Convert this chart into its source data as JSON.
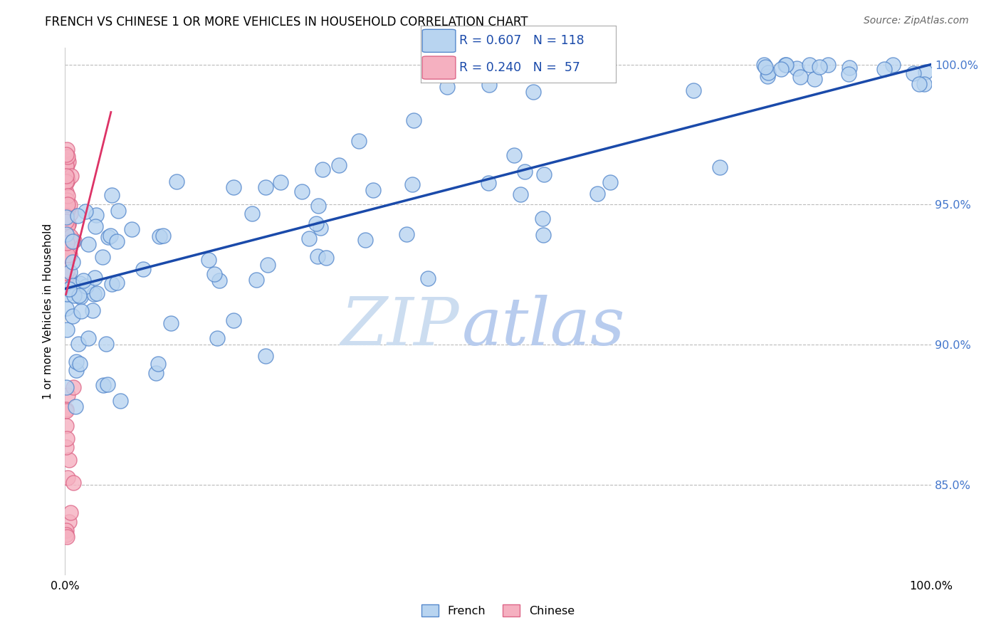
{
  "title": "FRENCH VS CHINESE 1 OR MORE VEHICLES IN HOUSEHOLD CORRELATION CHART",
  "source": "Source: ZipAtlas.com",
  "ylabel": "1 or more Vehicles in Household",
  "xlim": [
    0.0,
    1.0
  ],
  "ylim": [
    0.818,
    1.006
  ],
  "ytick_vals": [
    0.85,
    0.9,
    0.95,
    1.0
  ],
  "ytick_labels": [
    "85.0%",
    "90.0%",
    "95.0%",
    "100.0%"
  ],
  "xtick_labels": [
    "0.0%",
    "",
    "",
    "",
    "",
    "",
    "",
    "",
    "",
    "",
    "100.0%"
  ],
  "french_fill": "#b8d4f0",
  "french_edge": "#5588cc",
  "french_line": "#1a4aaa",
  "chinese_fill": "#f5b0c0",
  "chinese_edge": "#dd6688",
  "chinese_line": "#dd3366",
  "grid_color": "#bbbbbb",
  "watermark_color": "#cce0f5",
  "R_french": "R = 0.607",
  "N_french": "N = 118",
  "R_chinese": "R = 0.240",
  "N_chinese": "N =  57",
  "french_line_x0": 0.0,
  "french_line_y0": 0.92,
  "french_line_x1": 1.0,
  "french_line_y1": 1.0,
  "chinese_line_x0": 0.001,
  "chinese_line_y0": 0.918,
  "chinese_line_x1": 0.053,
  "chinese_line_y1": 0.983
}
